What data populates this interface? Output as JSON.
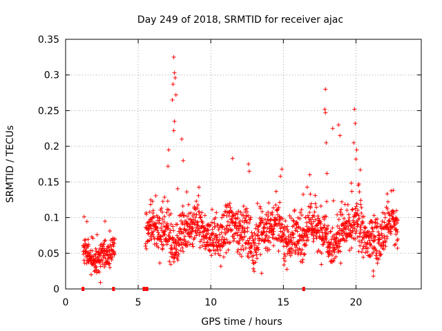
{
  "chart_data": {
    "type": "scatter",
    "title": "Day 249 of 2018, SRMTID for receiver ajac",
    "xlabel": "GPS time / hours",
    "ylabel": "SRMTID / TECUs",
    "xlim": [
      0,
      24.5
    ],
    "ylim": [
      0,
      0.35
    ],
    "xticks": [
      0,
      5,
      10,
      15,
      20
    ],
    "xtick_labels": [
      "0",
      "5",
      "10",
      "15",
      "20"
    ],
    "yticks": [
      0,
      0.05,
      0.1,
      0.15,
      0.2,
      0.25,
      0.3,
      0.35
    ],
    "ytick_labels": [
      "0",
      "0.05",
      "0.1",
      "0.15",
      "0.2",
      "0.25",
      "0.3",
      "0.35"
    ],
    "grid": true,
    "marker": "+",
    "series": [
      {
        "name": "SRMTID",
        "color": "#ff0000",
        "segments": [
          {
            "t_start": 1.2,
            "t_end": 3.4,
            "base": 0.048,
            "spread": 0.014
          },
          {
            "t_start": 5.5,
            "t_end": 22.9,
            "base": 0.078,
            "spread": 0.022
          }
        ],
        "peaks": [
          {
            "x": 7.45,
            "y": 0.325
          },
          {
            "x": 7.5,
            "y": 0.303
          },
          {
            "x": 7.55,
            "y": 0.296
          },
          {
            "x": 7.4,
            "y": 0.287
          },
          {
            "x": 7.6,
            "y": 0.272
          },
          {
            "x": 7.35,
            "y": 0.265
          },
          {
            "x": 7.5,
            "y": 0.235
          },
          {
            "x": 7.45,
            "y": 0.222
          },
          {
            "x": 8.0,
            "y": 0.21
          },
          {
            "x": 7.1,
            "y": 0.195
          },
          {
            "x": 8.1,
            "y": 0.18
          },
          {
            "x": 7.05,
            "y": 0.172
          },
          {
            "x": 11.5,
            "y": 0.183
          },
          {
            "x": 12.6,
            "y": 0.175
          },
          {
            "x": 12.65,
            "y": 0.165
          },
          {
            "x": 14.9,
            "y": 0.168
          },
          {
            "x": 14.8,
            "y": 0.158
          },
          {
            "x": 17.9,
            "y": 0.28
          },
          {
            "x": 17.85,
            "y": 0.252
          },
          {
            "x": 17.9,
            "y": 0.247
          },
          {
            "x": 18.4,
            "y": 0.225
          },
          {
            "x": 18.8,
            "y": 0.23
          },
          {
            "x": 18.9,
            "y": 0.215
          },
          {
            "x": 19.9,
            "y": 0.252
          },
          {
            "x": 19.95,
            "y": 0.232
          },
          {
            "x": 19.85,
            "y": 0.205
          },
          {
            "x": 17.95,
            "y": 0.205
          },
          {
            "x": 20.05,
            "y": 0.195
          },
          {
            "x": 20.0,
            "y": 0.182
          },
          {
            "x": 20.3,
            "y": 0.167
          },
          {
            "x": 18.0,
            "y": 0.162
          },
          {
            "x": 16.3,
            "y": 0.055
          },
          {
            "x": 2.4,
            "y": 0.009
          },
          {
            "x": 21.2,
            "y": 0.018
          },
          {
            "x": 13.5,
            "y": 0.022
          }
        ],
        "gap_markers": [
          1.2,
          3.3,
          5.4,
          5.6,
          16.4
        ]
      }
    ]
  }
}
